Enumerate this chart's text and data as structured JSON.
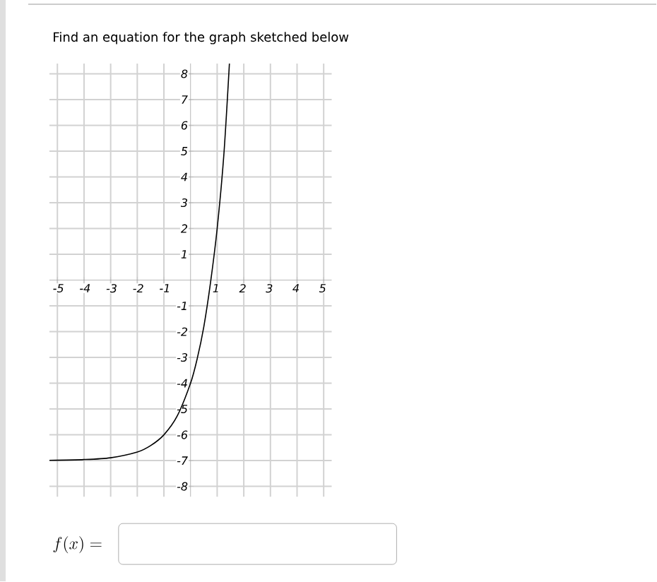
{
  "chart_data": {
    "type": "line",
    "title": "Find an equation for the graph sketched below",
    "annotations": [
      "f(x) ="
    ],
    "x": [
      -5.3,
      -4,
      -3,
      -2,
      -1.5,
      -1,
      -0.5,
      0,
      0.25,
      0.5,
      0.75,
      1,
      1.25,
      1.46
    ],
    "series": [
      {
        "color": "#000000",
        "values": [
          -6.99,
          -6.96,
          -6.89,
          -6.67,
          -6.42,
          -6,
          -5.27,
          -4,
          -3.05,
          -1.8,
          -0.1,
          2,
          4.85,
          8.4
        ]
      }
    ],
    "xlim": [
      -5.3,
      5.3
    ],
    "ylim": [
      -8.4,
      8.4
    ],
    "xticks": [
      -5,
      -4,
      -3,
      -2,
      -1,
      1,
      2,
      3,
      4,
      5
    ],
    "yticks": [
      -8,
      -7,
      -6,
      -5,
      -4,
      -3,
      -2,
      -1,
      1,
      2,
      3,
      4,
      5,
      6,
      7,
      8
    ],
    "grid": true,
    "marker": "none",
    "line_style": "solid"
  }
}
